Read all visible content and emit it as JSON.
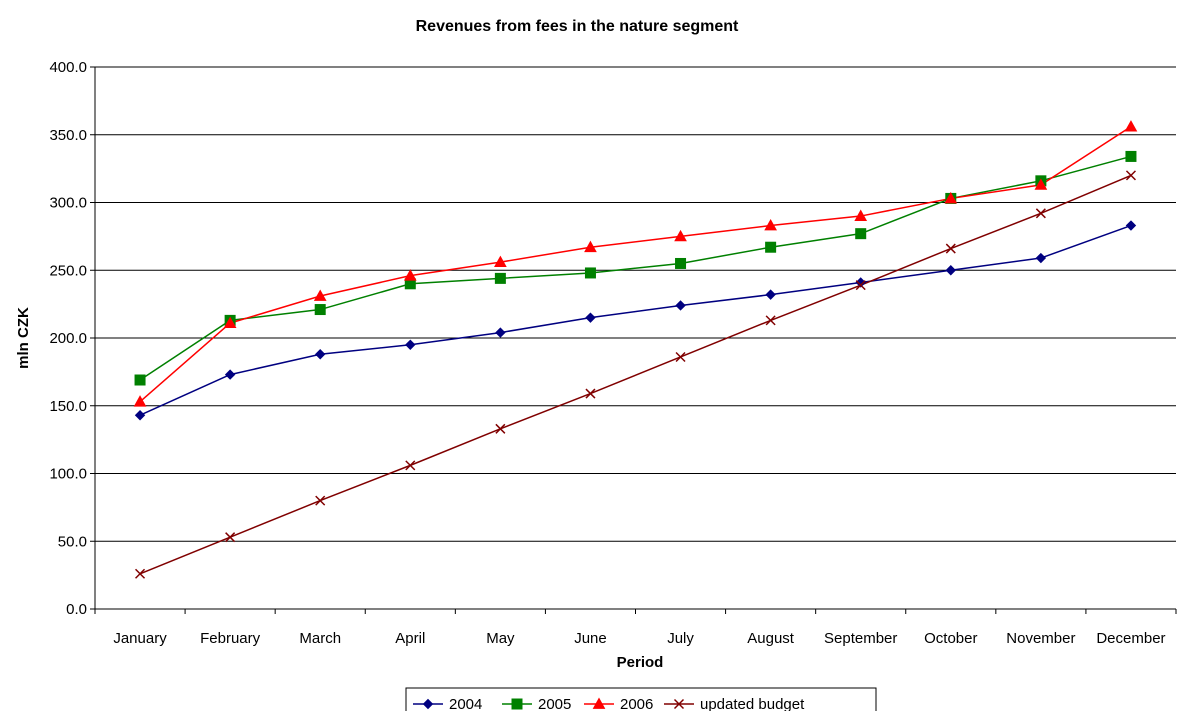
{
  "chart_data": {
    "type": "line",
    "title": "Revenues from fees in the nature segment",
    "xlabel": "Period",
    "ylabel": "mln CZK",
    "categories": [
      "January",
      "February",
      "March",
      "April",
      "May",
      "June",
      "July",
      "August",
      "September",
      "October",
      "November",
      "December"
    ],
    "ylim": [
      0,
      400
    ],
    "yticks": [
      "0.0",
      "50.0",
      "100.0",
      "150.0",
      "200.0",
      "250.0",
      "300.0",
      "350.0",
      "400.0"
    ],
    "grid": true,
    "legend_position": "bottom",
    "series": [
      {
        "name": "2004",
        "color": "#000080",
        "marker": "diamond",
        "values": [
          143,
          173,
          188,
          195,
          204,
          215,
          224,
          232,
          241,
          250,
          259,
          283
        ]
      },
      {
        "name": "2005",
        "color": "#008000",
        "marker": "square",
        "values": [
          169,
          213,
          221,
          240,
          244,
          248,
          255,
          267,
          277,
          303,
          316,
          334
        ]
      },
      {
        "name": "2006",
        "color": "#ff0000",
        "marker": "triangle",
        "values": [
          153,
          211,
          231,
          246,
          256,
          267,
          275,
          283,
          290,
          303,
          313,
          356
        ]
      },
      {
        "name": "updated budget",
        "color": "#800000",
        "marker": "x",
        "values": [
          26,
          53,
          80,
          106,
          133,
          159,
          186,
          213,
          239,
          266,
          292,
          320
        ]
      }
    ]
  }
}
